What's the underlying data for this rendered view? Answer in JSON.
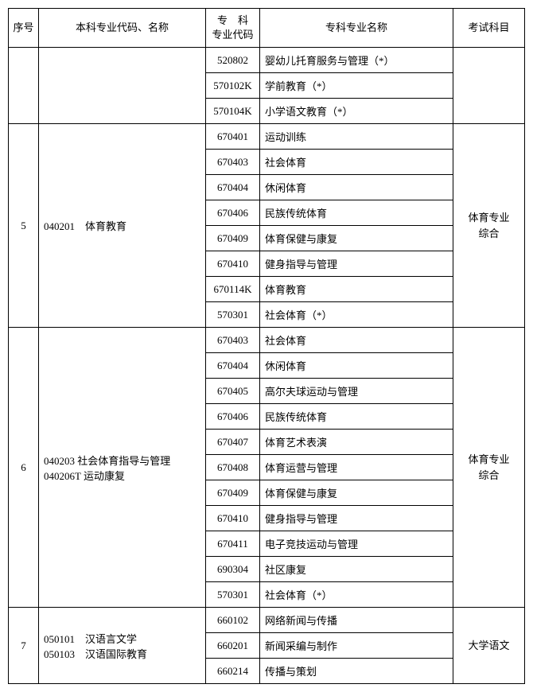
{
  "headers": {
    "seq": "序号",
    "benke": "本科专业代码、名称",
    "zhuanke_code": "专　科\n专业代码",
    "zhuanke_name": "专科专业名称",
    "exam": "考试科目"
  },
  "groups": [
    {
      "seq": "",
      "benke": "",
      "exam": "",
      "rows": [
        {
          "code": "520802",
          "name": "婴幼儿托育服务与管理（*）"
        },
        {
          "code": "570102K",
          "name": "学前教育（*）"
        },
        {
          "code": "570104K",
          "name": "小学语文教育（*）"
        }
      ]
    },
    {
      "seq": "5",
      "benke": "040201　体育教育",
      "exam": "体育专业\n综合",
      "rows": [
        {
          "code": "670401",
          "name": "运动训练"
        },
        {
          "code": "670403",
          "name": "社会体育"
        },
        {
          "code": "670404",
          "name": "休闲体育"
        },
        {
          "code": "670406",
          "name": "民族传统体育"
        },
        {
          "code": "670409",
          "name": "体育保健与康复"
        },
        {
          "code": "670410",
          "name": "健身指导与管理"
        },
        {
          "code": "670114K",
          "name": "体育教育"
        },
        {
          "code": "570301",
          "name": "社会体育（*）"
        }
      ]
    },
    {
      "seq": "6",
      "benke": "040203 社会体育指导与管理\n040206T 运动康复",
      "exam": "体育专业\n综合",
      "rows": [
        {
          "code": "670403",
          "name": "社会体育"
        },
        {
          "code": "670404",
          "name": "休闲体育"
        },
        {
          "code": "670405",
          "name": "高尔夫球运动与管理"
        },
        {
          "code": "670406",
          "name": "民族传统体育"
        },
        {
          "code": "670407",
          "name": "体育艺术表演"
        },
        {
          "code": "670408",
          "name": "体育运营与管理"
        },
        {
          "code": "670409",
          "name": "体育保健与康复"
        },
        {
          "code": "670410",
          "name": "健身指导与管理"
        },
        {
          "code": "670411",
          "name": "电子竞技运动与管理"
        },
        {
          "code": "690304",
          "name": "社区康复"
        },
        {
          "code": "570301",
          "name": "社会体育（*）"
        }
      ]
    },
    {
      "seq": "7",
      "benke": "050101　汉语言文学\n050103　汉语国际教育",
      "exam": "大学语文",
      "rows": [
        {
          "code": "660102",
          "name": "网络新闻与传播"
        },
        {
          "code": "660201",
          "name": "新闻采编与制作"
        },
        {
          "code": "660214",
          "name": "传播与策划"
        }
      ]
    }
  ]
}
